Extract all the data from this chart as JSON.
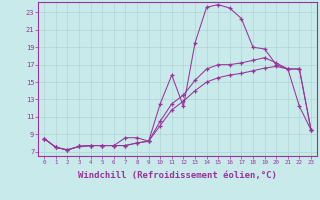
{
  "background_color": "#c8eaea",
  "grid_color": "#b0d4d4",
  "line_color": "#993399",
  "marker": "+",
  "xlabel": "Windchill (Refroidissement éolien,°C)",
  "xlabel_fontsize": 6.5,
  "ytick_labels": [
    7,
    9,
    11,
    13,
    15,
    17,
    19,
    21,
    23
  ],
  "xtick_labels": [
    0,
    1,
    2,
    3,
    4,
    5,
    6,
    7,
    8,
    9,
    10,
    11,
    12,
    13,
    14,
    15,
    16,
    17,
    18,
    19,
    20,
    21,
    22,
    23
  ],
  "xlim": [
    -0.5,
    23.5
  ],
  "ylim": [
    6.5,
    24.2
  ],
  "series": [
    [
      8.5,
      7.5,
      7.2,
      7.6,
      7.7,
      7.7,
      7.7,
      8.6,
      8.6,
      8.2,
      12.5,
      15.8,
      12.2,
      19.5,
      23.6,
      23.9,
      23.5,
      22.3,
      19.0,
      18.8,
      17.0,
      16.5,
      12.2,
      9.5
    ],
    [
      8.5,
      7.5,
      7.2,
      7.6,
      7.7,
      7.7,
      7.7,
      7.7,
      8.0,
      8.2,
      10.5,
      12.5,
      13.5,
      15.2,
      16.5,
      17.0,
      17.0,
      17.2,
      17.5,
      17.8,
      17.2,
      16.5,
      16.5,
      9.5
    ],
    [
      8.5,
      7.5,
      7.2,
      7.6,
      7.7,
      7.7,
      7.7,
      7.7,
      8.0,
      8.2,
      10.0,
      11.8,
      12.8,
      14.0,
      15.0,
      15.5,
      15.8,
      16.0,
      16.3,
      16.6,
      16.8,
      16.5,
      16.5,
      9.5
    ]
  ]
}
